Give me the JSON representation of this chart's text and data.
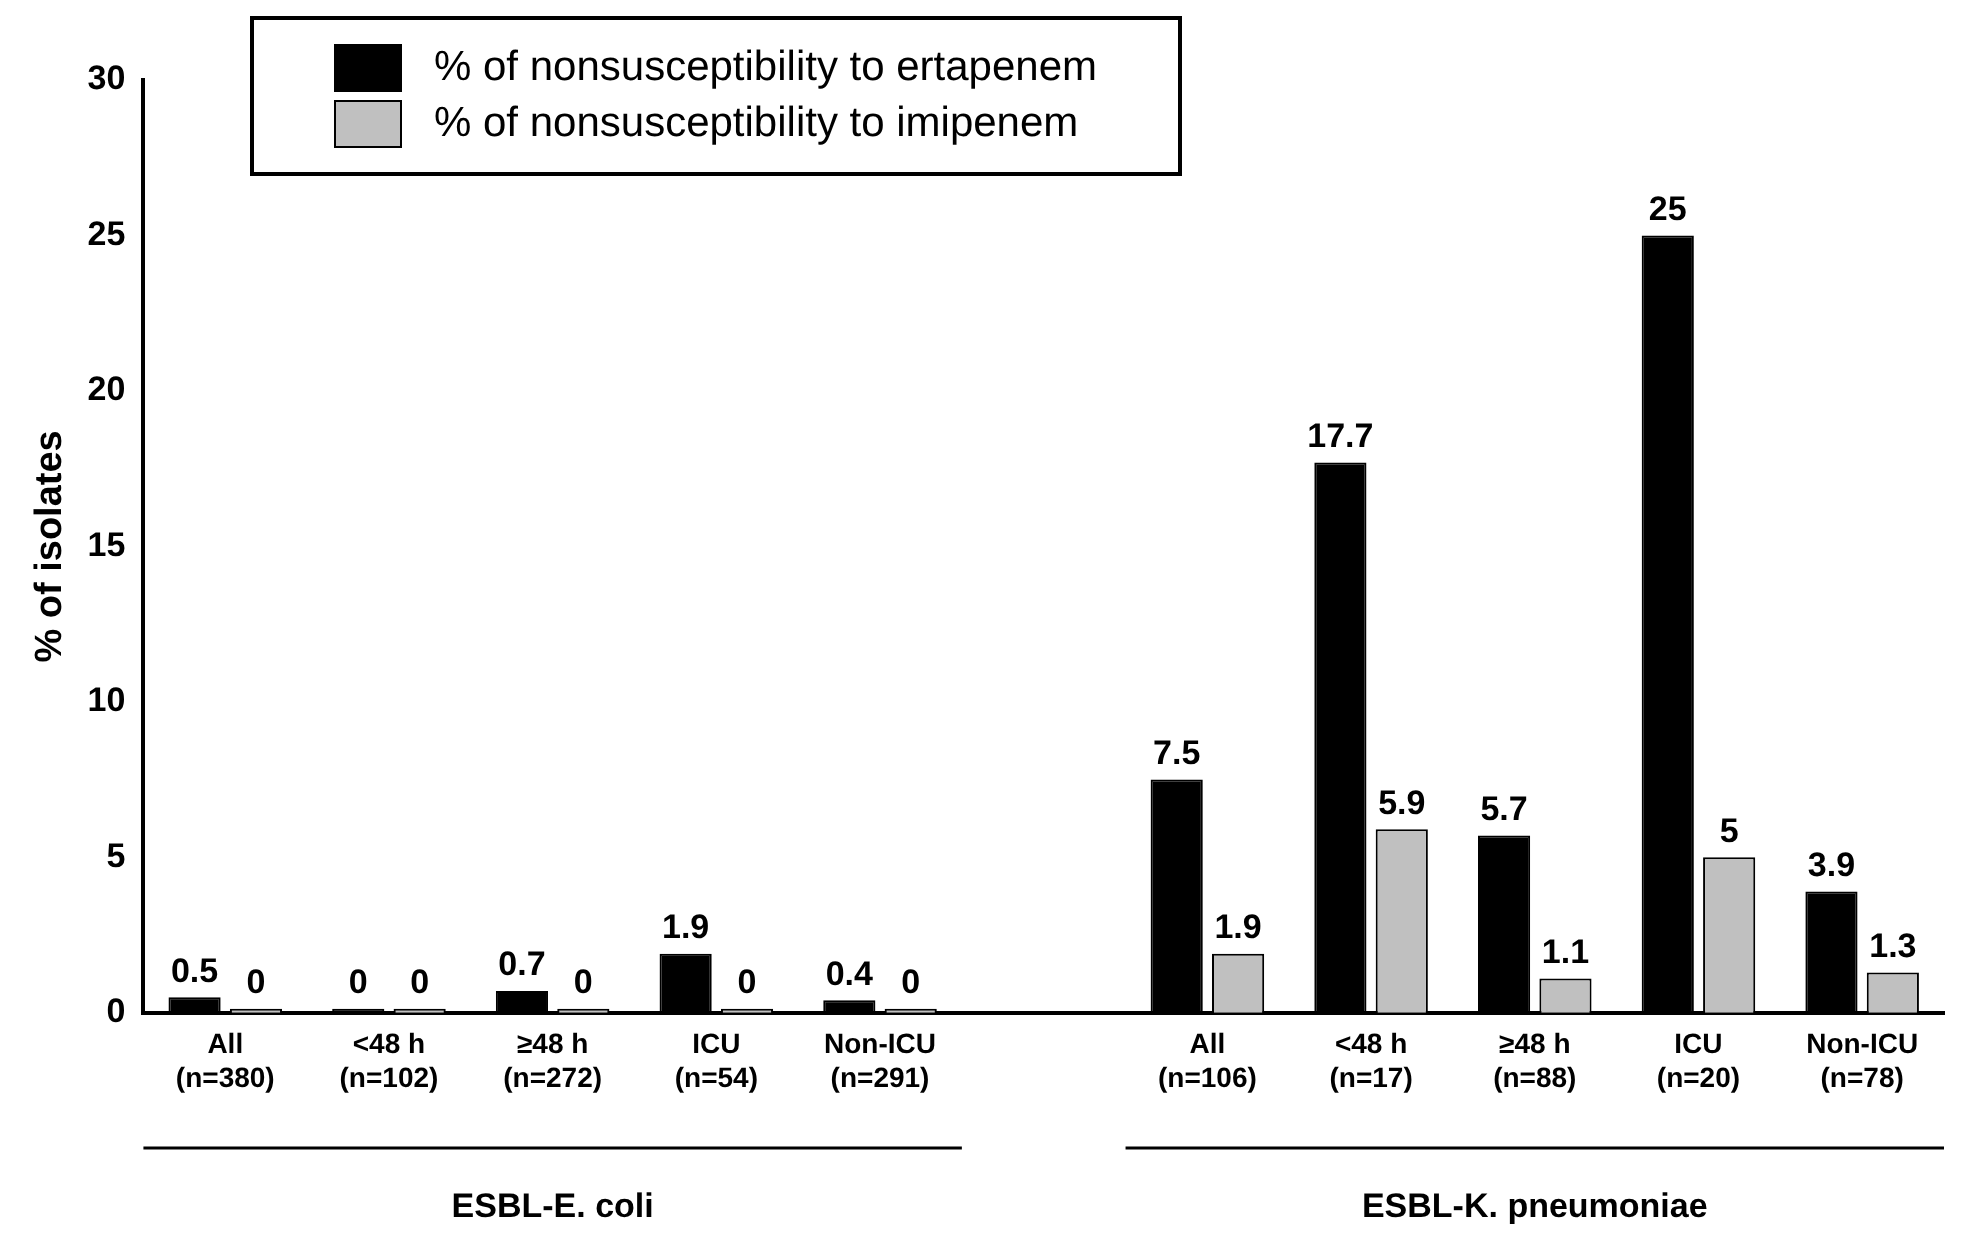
{
  "chart_data": {
    "type": "bar",
    "ylabel": "% of isolates",
    "categories": [
      "All\n(n=380)",
      "<48 h\n(n=102)",
      "≥48 h\n(n=272)",
      "ICU\n(n=54)",
      "Non-ICU\n(n=291)",
      null,
      "All\n(n=106)",
      "<48 h\n(n=17)",
      "≥48 h\n(n=88)",
      "ICU\n(n=20)",
      "Non-ICU\n(n=78)"
    ],
    "series": [
      {
        "name": "% of nonsusceptibility to ertapenem",
        "color": "#000000",
        "values": [
          0.5,
          0,
          0.7,
          1.9,
          0.4,
          null,
          7.5,
          17.7,
          5.7,
          25,
          3.9
        ]
      },
      {
        "name": "% of nonsusceptibility to imipenem",
        "color": "#c0c0c0",
        "values": [
          0,
          0,
          0,
          0,
          0,
          null,
          1.9,
          5.9,
          1.1,
          5,
          1.3
        ]
      }
    ],
    "ylim": [
      0,
      30
    ],
    "yticks": [
      0,
      5,
      10,
      15,
      20,
      25,
      30
    ],
    "grid": false,
    "legend": "top left",
    "data_labels": true,
    "annotations": [
      "ESBL-E. coli",
      "ESBL-K. pneumoniae"
    ]
  }
}
